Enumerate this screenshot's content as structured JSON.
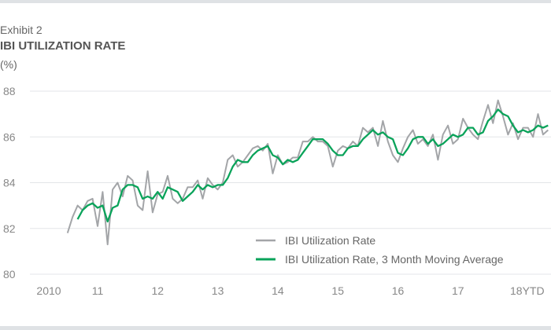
{
  "header": {
    "exhibit": "Exhibit 2",
    "title": "IBI UTILIZATION RATE",
    "unit": "(%)"
  },
  "chart_data": {
    "type": "line",
    "title": "IBI UTILIZATION RATE",
    "ylabel": "(%)",
    "xlabel": "",
    "ylim": [
      80,
      88
    ],
    "yticks": [
      80,
      82,
      84,
      86,
      88
    ],
    "grid": true,
    "legend_position": "bottom-right",
    "x_start": "2010-07",
    "x_frequency": "monthly",
    "xticks": [
      {
        "label": "2010",
        "year": 2010
      },
      {
        "label": "11",
        "year": 2011
      },
      {
        "label": "12",
        "year": 2012
      },
      {
        "label": "13",
        "year": 2013
      },
      {
        "label": "14",
        "year": 2014
      },
      {
        "label": "15",
        "year": 2015
      },
      {
        "label": "16",
        "year": 2016
      },
      {
        "label": "17",
        "year": 2017
      },
      {
        "label": "18YTD",
        "year": 2018
      }
    ],
    "series": [
      {
        "name": "IBI Utilization Rate",
        "color": "#a3a5a8",
        "values": [
          81.8,
          82.5,
          83.0,
          82.8,
          83.2,
          83.3,
          82.1,
          83.6,
          81.3,
          83.7,
          84.0,
          83.4,
          84.3,
          84.1,
          83.0,
          82.8,
          84.5,
          82.7,
          83.5,
          83.6,
          84.3,
          83.3,
          83.1,
          83.3,
          83.8,
          83.8,
          84.1,
          83.3,
          84.2,
          83.9,
          83.7,
          84.0,
          85.0,
          85.2,
          84.7,
          84.9,
          85.2,
          85.5,
          85.6,
          85.4,
          85.7,
          84.4,
          85.2,
          84.8,
          84.9,
          85.1,
          85.1,
          85.8,
          85.8,
          86.0,
          85.8,
          85.8,
          85.6,
          84.7,
          85.4,
          85.6,
          85.5,
          85.8,
          85.6,
          86.4,
          86.2,
          86.4,
          85.6,
          86.7,
          85.8,
          85.2,
          84.9,
          85.5,
          86.0,
          86.3,
          85.7,
          85.9,
          85.6,
          86.1,
          85.0,
          86.1,
          86.5,
          85.7,
          85.9,
          86.8,
          86.4,
          86.1,
          85.9,
          86.7,
          87.4,
          86.6,
          87.6,
          86.9,
          86.1,
          86.6,
          85.9,
          86.4,
          86.4,
          86.0,
          87.0,
          86.1,
          86.3
        ]
      },
      {
        "name": "IBI Utilization Rate, 3 Month Moving Average",
        "color": "#0aa35a",
        "values": [
          null,
          null,
          82.4,
          82.8,
          83.0,
          83.1,
          82.9,
          83.0,
          82.3,
          82.9,
          83.0,
          83.7,
          83.9,
          83.9,
          83.8,
          83.3,
          83.4,
          83.3,
          83.6,
          83.3,
          83.8,
          83.7,
          83.6,
          83.2,
          83.4,
          83.6,
          83.9,
          83.7,
          83.9,
          83.8,
          83.9,
          83.9,
          84.2,
          84.7,
          85.0,
          84.9,
          84.9,
          85.2,
          85.4,
          85.5,
          85.6,
          85.2,
          85.1,
          84.8,
          85.0,
          84.9,
          85.0,
          85.3,
          85.6,
          85.9,
          85.9,
          85.9,
          85.7,
          85.4,
          85.2,
          85.2,
          85.5,
          85.6,
          85.6,
          85.9,
          86.1,
          86.3,
          86.1,
          86.2,
          86.0,
          85.9,
          85.3,
          85.2,
          85.5,
          85.9,
          86.0,
          86.0,
          85.7,
          85.9,
          85.6,
          85.7,
          85.9,
          86.1,
          86.0,
          86.1,
          86.4,
          86.4,
          86.1,
          86.2,
          86.7,
          86.9,
          87.2,
          87.0,
          86.9,
          86.5,
          86.2,
          86.3,
          86.2,
          86.3,
          86.5,
          86.4,
          86.5
        ]
      }
    ]
  }
}
